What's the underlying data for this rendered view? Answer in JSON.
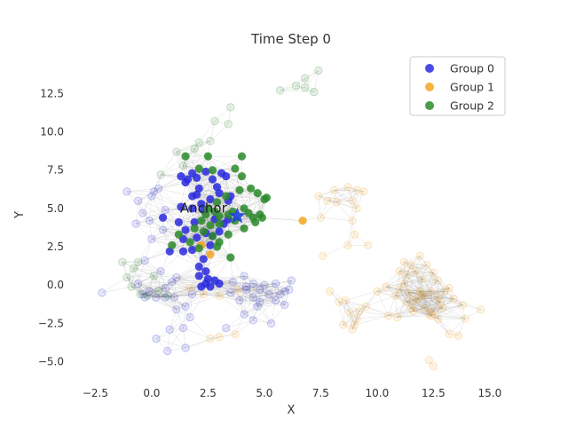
{
  "chart_data": {
    "type": "scatter",
    "title": "Time Step 0",
    "xlabel": "X",
    "ylabel": "Y",
    "xlim": [
      -3.5,
      16.5
    ],
    "ylim": [
      -6.3,
      15.3
    ],
    "xticks": [
      -2.5,
      0.0,
      2.5,
      5.0,
      7.5,
      10.0,
      12.5,
      15.0
    ],
    "xtick_labels": [
      "−2.5",
      "0.0",
      "2.5",
      "5.0",
      "7.5",
      "10.0",
      "12.5",
      "15.0"
    ],
    "yticks": [
      -5.0,
      -2.5,
      0.0,
      2.5,
      5.0,
      7.5,
      10.0,
      12.5
    ],
    "ytick_labels": [
      "−5.0",
      "−2.5",
      "0.0",
      "2.5",
      "5.0",
      "7.5",
      "10.0",
      "12.5"
    ],
    "grid": false,
    "legend_position": "top-right",
    "colors": {
      "group0": "#2a2ae0",
      "group1": "#f5a623",
      "group2": "#2a8a2a",
      "edge": "#888888",
      "anchor": "#1f3fe0"
    },
    "series": [
      {
        "name": "Group 0",
        "style": "active",
        "points": [
          [
            1.3,
            7.1
          ],
          [
            1.6,
            6.9
          ],
          [
            1.8,
            7.3
          ],
          [
            2.0,
            7.0
          ],
          [
            2.4,
            7.4
          ],
          [
            3.1,
            7.3
          ],
          [
            3.3,
            7.1
          ],
          [
            2.7,
            6.9
          ],
          [
            1.5,
            6.7
          ],
          [
            2.1,
            6.3
          ],
          [
            2.9,
            6.4
          ],
          [
            3.0,
            6.0
          ],
          [
            3.5,
            5.8
          ],
          [
            1.8,
            5.8
          ],
          [
            2.0,
            5.9
          ],
          [
            2.2,
            5.3
          ],
          [
            2.6,
            5.6
          ],
          [
            3.4,
            5.5
          ],
          [
            1.8,
            5.0
          ],
          [
            2.3,
            4.9
          ],
          [
            1.3,
            5.1
          ],
          [
            0.5,
            4.4
          ],
          [
            1.2,
            4.1
          ],
          [
            1.9,
            4.1
          ],
          [
            1.5,
            3.6
          ],
          [
            2.4,
            3.4
          ],
          [
            1.4,
            3.0
          ],
          [
            2.0,
            3.1
          ],
          [
            2.7,
            3.2
          ],
          [
            3.0,
            3.5
          ],
          [
            2.6,
            2.6
          ],
          [
            1.8,
            2.3
          ],
          [
            1.4,
            2.2
          ],
          [
            0.8,
            2.2
          ],
          [
            2.3,
            1.7
          ],
          [
            2.1,
            1.2
          ],
          [
            2.4,
            0.9
          ],
          [
            2.1,
            0.6
          ],
          [
            2.5,
            0.4
          ],
          [
            2.4,
            0.1
          ],
          [
            2.8,
            0.3
          ],
          [
            3.0,
            0.1
          ],
          [
            2.6,
            -0.1
          ],
          [
            2.2,
            -0.1
          ],
          [
            3.2,
            4.0
          ],
          [
            2.8,
            4.3
          ],
          [
            3.4,
            4.3
          ]
        ],
        "faded_points": [
          [
            -1.1,
            6.1
          ],
          [
            -0.6,
            5.5
          ],
          [
            -0.4,
            4.7
          ],
          [
            0.0,
            5.8
          ],
          [
            -0.7,
            4.0
          ],
          [
            -0.1,
            4.2
          ],
          [
            0.3,
            6.3
          ],
          [
            0.6,
            4.9
          ],
          [
            0.1,
            6.1
          ],
          [
            0.5,
            3.6
          ],
          [
            0.0,
            3.0
          ],
          [
            -0.3,
            1.6
          ],
          [
            -0.6,
            0.1
          ],
          [
            -0.4,
            -0.6
          ],
          [
            -0.3,
            -0.8
          ],
          [
            -0.1,
            -0.4
          ],
          [
            0.2,
            -0.8
          ],
          [
            0.4,
            0.9
          ],
          [
            0.9,
            0.2
          ],
          [
            1.1,
            0.5
          ],
          [
            0.6,
            -0.8
          ],
          [
            1.0,
            -0.8
          ],
          [
            1.5,
            -1.4
          ],
          [
            1.8,
            -0.6
          ],
          [
            1.1,
            -1.6
          ],
          [
            1.7,
            -2.1
          ],
          [
            1.4,
            -2.8
          ],
          [
            0.8,
            -2.9
          ],
          [
            0.2,
            -3.5
          ],
          [
            0.7,
            -4.3
          ],
          [
            1.5,
            -4.1
          ],
          [
            -2.2,
            -0.5
          ],
          [
            3.5,
            -0.5
          ],
          [
            4.2,
            -0.1
          ],
          [
            4.5,
            -0.8
          ],
          [
            5.0,
            0.0
          ],
          [
            5.5,
            0.1
          ],
          [
            5.2,
            -0.6
          ],
          [
            4.8,
            -1.1
          ],
          [
            3.9,
            -1.0
          ],
          [
            4.1,
            -1.9
          ],
          [
            4.7,
            -1.4
          ],
          [
            5.5,
            -1.0
          ],
          [
            5.9,
            -1.3
          ],
          [
            4.5,
            -2.3
          ],
          [
            5.3,
            -2.5
          ],
          [
            3.3,
            -2.8
          ],
          [
            4.2,
            -0.3
          ],
          [
            5.7,
            -0.6
          ],
          [
            6.1,
            -0.3
          ],
          [
            3.6,
            0.2
          ],
          [
            4.8,
            -0.3
          ],
          [
            4.1,
            0.6
          ],
          [
            6.2,
            0.3
          ],
          [
            4.5,
            0.1
          ],
          [
            5.9,
            -0.4
          ],
          [
            0.6,
            -0.2
          ]
        ]
      },
      {
        "name": "Group 1",
        "style": "active",
        "points": [
          [
            6.7,
            4.2
          ],
          [
            2.6,
            2.0
          ],
          [
            2.2,
            2.6
          ]
        ],
        "faded_points": [
          [
            7.5,
            4.4
          ],
          [
            7.8,
            5.5
          ],
          [
            7.4,
            5.8
          ],
          [
            8.1,
            6.2
          ],
          [
            8.2,
            5.4
          ],
          [
            8.7,
            6.4
          ],
          [
            9.1,
            6.2
          ],
          [
            9.4,
            6.1
          ],
          [
            8.9,
            5.5
          ],
          [
            9.1,
            5.0
          ],
          [
            9.0,
            3.3
          ],
          [
            8.9,
            4.2
          ],
          [
            7.6,
            1.9
          ],
          [
            8.7,
            2.6
          ],
          [
            9.6,
            2.6
          ],
          [
            7.9,
            -0.4
          ],
          [
            8.3,
            -1.1
          ],
          [
            8.6,
            -1.0
          ],
          [
            8.8,
            -1.8
          ],
          [
            8.5,
            -2.6
          ],
          [
            8.9,
            -2.9
          ],
          [
            9.2,
            -1.7
          ],
          [
            9.5,
            -1.4
          ],
          [
            9.1,
            -2.2
          ],
          [
            9.0,
            -2.6
          ],
          [
            10.0,
            -0.4
          ],
          [
            10.4,
            -0.1
          ],
          [
            10.8,
            -0.7
          ],
          [
            11.0,
            -0.3
          ],
          [
            11.2,
            0.1
          ],
          [
            11.4,
            -0.5
          ],
          [
            11.6,
            -1.0
          ],
          [
            11.5,
            -1.5
          ],
          [
            11.8,
            -0.9
          ],
          [
            11.9,
            -0.4
          ],
          [
            12.0,
            -0.6
          ],
          [
            11.6,
            -1.7
          ],
          [
            12.1,
            -1.5
          ],
          [
            12.3,
            -1.9
          ],
          [
            12.4,
            -2.0
          ],
          [
            12.5,
            -1.7
          ],
          [
            12.7,
            -2.2
          ],
          [
            12.9,
            -1.5
          ],
          [
            12.7,
            -0.8
          ],
          [
            12.4,
            -0.4
          ],
          [
            12.0,
            0.4
          ],
          [
            11.7,
            0.9
          ],
          [
            11.3,
            0.7
          ],
          [
            11.0,
            0.9
          ],
          [
            12.5,
            0.8
          ],
          [
            12.7,
            0.3
          ],
          [
            13.0,
            -0.4
          ],
          [
            13.2,
            -0.2
          ],
          [
            13.4,
            -0.9
          ],
          [
            13.8,
            -1.3
          ],
          [
            13.9,
            -2.2
          ],
          [
            13.6,
            -3.3
          ],
          [
            13.2,
            -3.2
          ],
          [
            12.3,
            -4.9
          ],
          [
            12.5,
            -5.3
          ],
          [
            10.9,
            -2.1
          ],
          [
            10.5,
            -2.0
          ],
          [
            11.2,
            1.5
          ],
          [
            11.9,
            1.9
          ],
          [
            12.2,
            1.3
          ],
          [
            11.5,
            1.3
          ],
          [
            14.6,
            -1.6
          ],
          [
            12.1,
            -0.7
          ],
          [
            12.8,
            -1.1
          ],
          [
            11.3,
            -1.1
          ],
          [
            3.0,
            -3.4
          ],
          [
            2.6,
            -3.5
          ],
          [
            3.7,
            -3.2
          ],
          [
            1.7,
            -0.2
          ],
          [
            2.3,
            -0.6
          ],
          [
            3.0,
            -0.7
          ],
          [
            3.8,
            -0.3
          ]
        ]
      },
      {
        "name": "Group 2",
        "style": "active",
        "points": [
          [
            1.5,
            8.4
          ],
          [
            2.5,
            8.4
          ],
          [
            4.0,
            8.4
          ],
          [
            2.1,
            7.6
          ],
          [
            2.7,
            7.5
          ],
          [
            3.7,
            7.6
          ],
          [
            4.0,
            7.1
          ],
          [
            4.4,
            6.3
          ],
          [
            4.7,
            6.0
          ],
          [
            3.9,
            6.2
          ],
          [
            3.3,
            5.8
          ],
          [
            2.9,
            5.4
          ],
          [
            2.5,
            5.0
          ],
          [
            2.4,
            4.6
          ],
          [
            2.8,
            4.8
          ],
          [
            4.1,
            5.0
          ],
          [
            4.3,
            4.7
          ],
          [
            4.5,
            4.4
          ],
          [
            4.9,
            4.4
          ],
          [
            5.1,
            5.7
          ],
          [
            5.0,
            5.6
          ],
          [
            3.0,
            4.5
          ],
          [
            2.2,
            4.2
          ],
          [
            2.6,
            3.9
          ],
          [
            3.0,
            4.0
          ],
          [
            3.4,
            4.6
          ],
          [
            1.9,
            3.7
          ],
          [
            2.3,
            3.5
          ],
          [
            2.7,
            3.2
          ],
          [
            3.4,
            3.3
          ],
          [
            4.1,
            3.7
          ],
          [
            4.6,
            4.1
          ],
          [
            3.6,
            4.8
          ],
          [
            1.2,
            3.3
          ],
          [
            1.7,
            2.8
          ],
          [
            2.9,
            2.5
          ],
          [
            3.0,
            2.8
          ],
          [
            2.1,
            2.4
          ],
          [
            0.9,
            2.6
          ],
          [
            3.5,
            1.8
          ],
          [
            3.7,
            4.2
          ],
          [
            4.8,
            4.6
          ]
        ],
        "faded_points": [
          [
            7.4,
            14.0
          ],
          [
            6.8,
            13.5
          ],
          [
            6.4,
            13.0
          ],
          [
            6.8,
            12.9
          ],
          [
            7.2,
            12.6
          ],
          [
            5.7,
            12.7
          ],
          [
            3.5,
            11.6
          ],
          [
            3.4,
            10.5
          ],
          [
            2.8,
            10.7
          ],
          [
            2.6,
            9.4
          ],
          [
            2.1,
            9.3
          ],
          [
            1.9,
            8.9
          ],
          [
            1.1,
            8.7
          ],
          [
            1.4,
            7.8
          ],
          [
            0.4,
            7.2
          ],
          [
            -1.3,
            1.5
          ],
          [
            -0.8,
            1.1
          ],
          [
            -0.6,
            1.5
          ],
          [
            -1.1,
            0.5
          ],
          [
            -0.5,
            -0.6
          ],
          [
            -0.2,
            -0.7
          ],
          [
            0.3,
            -0.4
          ],
          [
            0.7,
            -0.7
          ],
          [
            -0.9,
            -0.1
          ],
          [
            0.1,
            0.6
          ]
        ]
      }
    ],
    "anchor": {
      "label": "Anchor",
      "x": 3.8,
      "y": 4.5
    }
  }
}
